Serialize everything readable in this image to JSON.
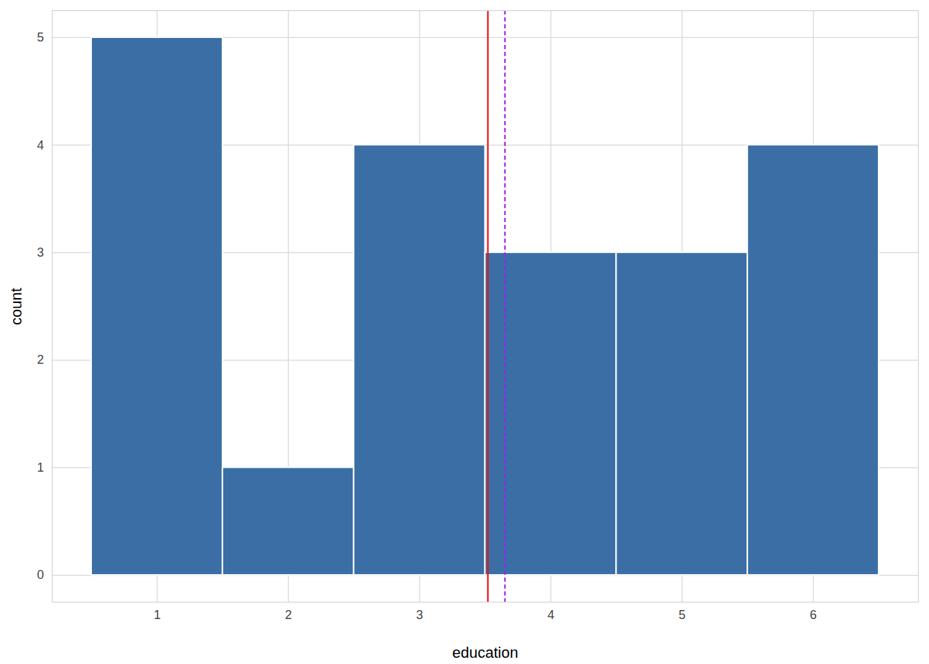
{
  "chart_data": {
    "type": "histogram",
    "x_label": "education",
    "y_label": "count",
    "bins": [
      0.5,
      1.5,
      2.5,
      3.5,
      4.5,
      5.5,
      6.5
    ],
    "values": [
      5,
      1,
      4,
      3,
      3,
      4
    ],
    "color": "#3a6ea5",
    "xlim": [
      0.2,
      6.8
    ],
    "xticks": [
      1,
      2,
      3,
      4,
      5,
      6
    ],
    "ylim": [
      -0.25,
      5.25
    ],
    "yticks": [
      0,
      1,
      2,
      3,
      4,
      5
    ],
    "grid": true,
    "vlines": [
      {
        "value": 3.52,
        "color": "#ee1111",
        "line_style": "solid"
      },
      {
        "value": 3.65,
        "color": "#a020f0",
        "line_style": "dashed"
      }
    ]
  }
}
